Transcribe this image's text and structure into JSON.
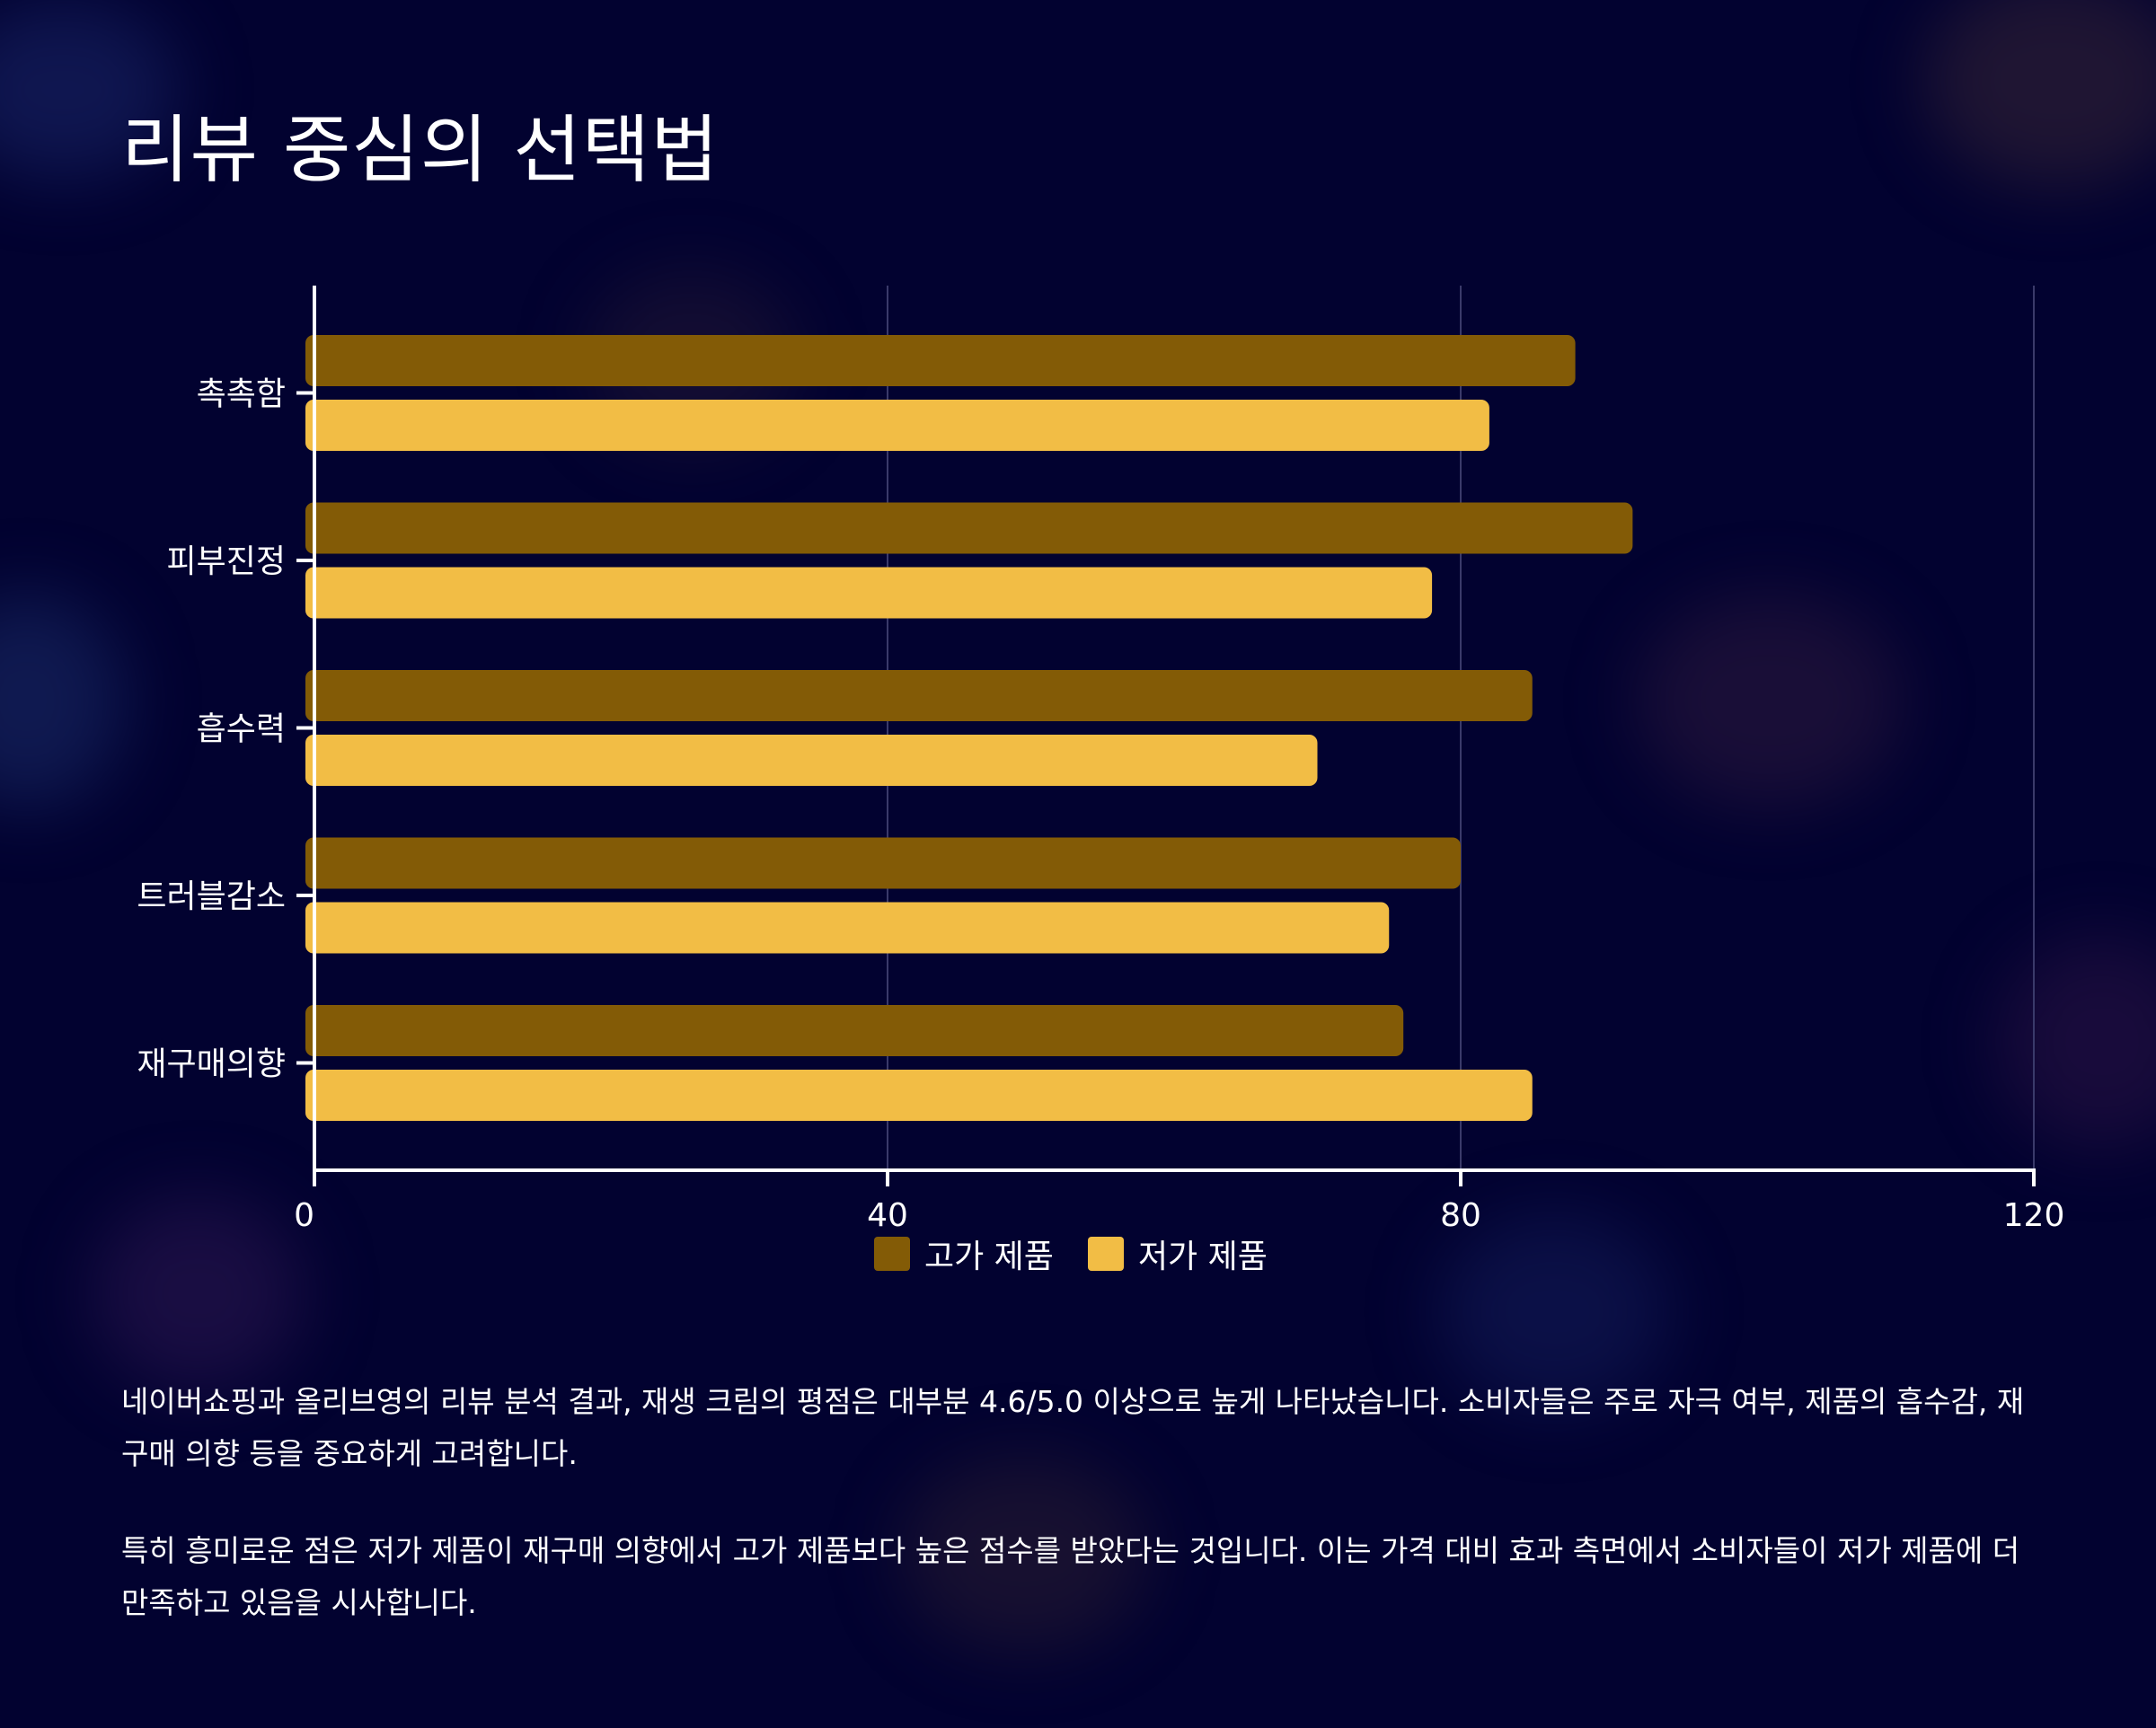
{
  "title": "리뷰 중심의 선택법",
  "colors": {
    "background": "#020230",
    "premium": "#835B06",
    "budget": "#F2BD45",
    "axis": "#ffffff",
    "grid": "#3a3a6a"
  },
  "chart_data": {
    "type": "bar",
    "orientation": "horizontal",
    "categories": [
      "촉촉함",
      "피부진정",
      "흡수력",
      "트러블감소",
      "재구매의향"
    ],
    "series": [
      {
        "name": "고가 제품",
        "values": [
          88,
          92,
          85,
          80,
          76
        ]
      },
      {
        "name": "저가 제품",
        "values": [
          82,
          78,
          70,
          75,
          85
        ]
      }
    ],
    "xlim": [
      0,
      120
    ],
    "xticks": [
      "0",
      "40",
      "80",
      "120"
    ],
    "xlabel": "",
    "ylabel": "",
    "grid": "vertical",
    "legend_position": "bottom"
  },
  "legend": [
    {
      "label": "고가 제품",
      "color": "#835B06"
    },
    {
      "label": "저가 제품",
      "color": "#F2BD45"
    }
  ],
  "paragraphs": [
    "네이버쇼핑과 올리브영의 리뷰 분석 결과, 재생 크림의 평점은 대부분 4.6/5.0 이상으로 높게 나타났습니다. 소비자들은 주로 자극 여부, 제품의 흡수감, 재구매 의향 등을 중요하게 고려합니다.",
    "특히 흥미로운 점은 저가 제품이 재구매 의향에서 고가 제품보다 높은 점수를 받았다는 것입니다. 이는 가격 대비 효과 측면에서 소비자들이 저가 제품에 더 만족하고 있음을 시사합니다."
  ]
}
